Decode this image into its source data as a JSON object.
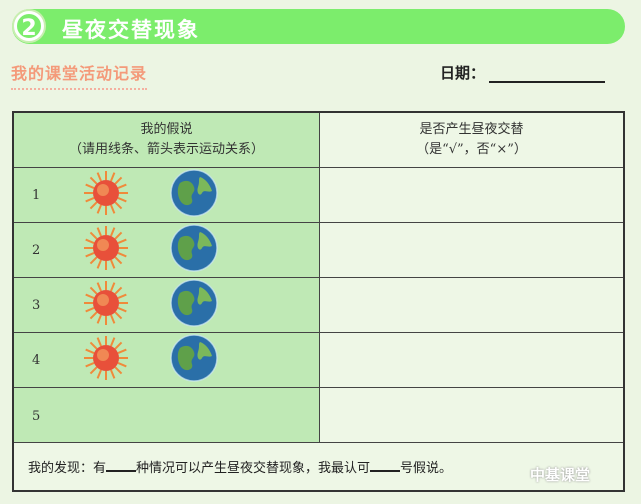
{
  "banner": {
    "number": "2",
    "title": "昼夜交替现象"
  },
  "record_title": "我的课堂活动记录",
  "date_label": "日期：",
  "table": {
    "headers": [
      {
        "line1": "我的假说",
        "line2": "（请用线条、箭头表示运动关系）"
      },
      {
        "line1": "是否产生昼夜交替",
        "line2": "（是“√”，否“×”）"
      }
    ],
    "rows": [
      {
        "num": "1",
        "icons": [
          "sun-icon",
          "earth-icon"
        ]
      },
      {
        "num": "2",
        "icons": [
          "sun-icon",
          "earth-icon"
        ]
      },
      {
        "num": "3",
        "icons": [
          "sun-icon",
          "earth-icon"
        ]
      },
      {
        "num": "4",
        "icons": [
          "sun-icon",
          "earth-icon"
        ]
      },
      {
        "num": "5",
        "icons": []
      }
    ],
    "footer": {
      "p1": "我的发现：有",
      "p2": "种情况可以产生昼夜交替现象，我最认可",
      "p3": "号假说。"
    }
  },
  "watermark": "中基课堂",
  "colors": {
    "banner": "#7ced6c",
    "left_col": "#bfe9b5",
    "accent": "#f49a7a"
  }
}
